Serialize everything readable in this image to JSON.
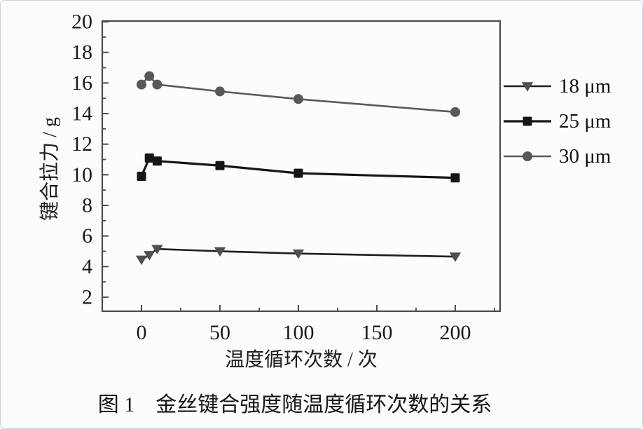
{
  "figure": {
    "background": "#fbfcfe",
    "border_color": "#ccd2d7",
    "axis_color": "#4a4a4a",
    "text_color": "#1c1c1c"
  },
  "chart_data": {
    "type": "line",
    "title": "",
    "xlabel": "温度循环次数 / 次",
    "ylabel": "键合拉力 / g",
    "caption": "图 1　金丝键合强度随温度循环次数的关系",
    "xlim": [
      -25,
      228.6
    ],
    "ylim": [
      1.08,
      20.05
    ],
    "x_ticks": [
      0,
      50,
      100,
      150,
      200
    ],
    "x_minor_step": 25,
    "y_ticks": [
      2,
      4,
      6,
      8,
      10,
      12,
      14,
      16,
      18,
      20
    ],
    "y_minor_step": 1,
    "grid": false,
    "legend_position": "right-outside",
    "x": [
      0,
      5,
      10,
      50,
      100,
      200
    ],
    "series": [
      {
        "name": "18 μm",
        "marker": "triangle-down",
        "marker_color": "#4f4f4f",
        "line_color": "#1e1e1e",
        "line_width": 2.6,
        "values": [
          4.45,
          4.75,
          5.15,
          5.0,
          4.85,
          4.65
        ]
      },
      {
        "name": "25 μm",
        "marker": "square",
        "marker_color": "#161616",
        "line_color": "#161616",
        "line_width": 3.2,
        "values": [
          9.9,
          11.1,
          10.9,
          10.6,
          10.1,
          9.8
        ]
      },
      {
        "name": "30 μm",
        "marker": "circle",
        "marker_color": "#585858",
        "line_color": "#5a5a5a",
        "line_width": 2.6,
        "values": [
          15.9,
          16.45,
          15.9,
          15.45,
          14.95,
          14.1
        ]
      }
    ]
  }
}
